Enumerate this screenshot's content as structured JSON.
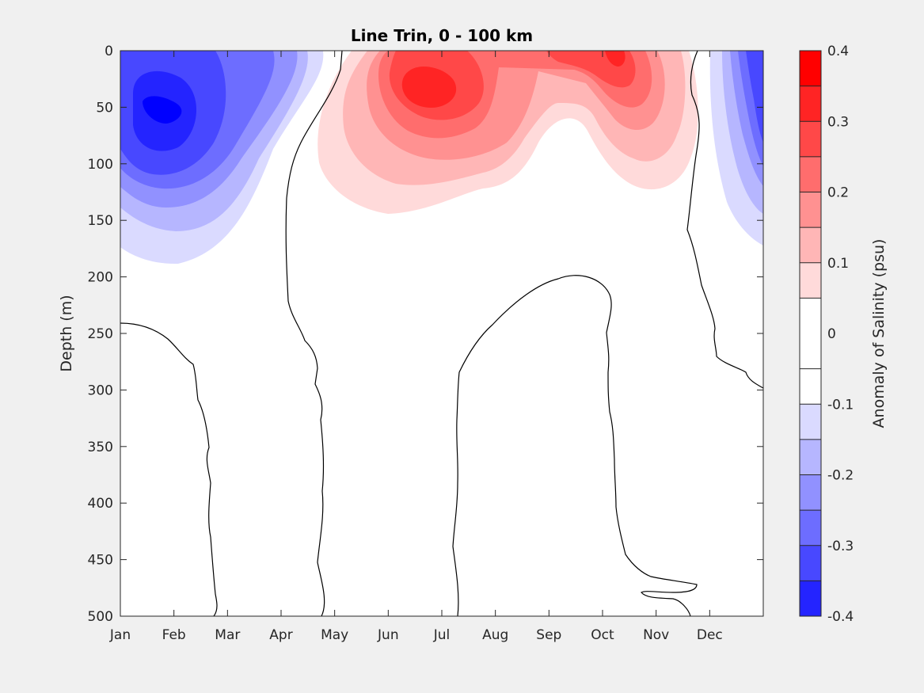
{
  "chart_data": {
    "type": "heatmap",
    "title": "Line Trin, 0 - 100 km",
    "xlabel": "",
    "ylabel": "Depth (m)",
    "x_ticks": [
      "Jan",
      "Feb",
      "Mar",
      "Apr",
      "May",
      "Jun",
      "Jul",
      "Aug",
      "Sep",
      "Oct",
      "Nov",
      "Dec"
    ],
    "x_range_months": [
      0,
      12
    ],
    "y_ticks": [
      0,
      50,
      100,
      150,
      200,
      250,
      300,
      350,
      400,
      450,
      500
    ],
    "ylim": [
      0,
      500
    ],
    "y_reversed": true,
    "colorbar": {
      "label": "Anomaly of Salinity (psu)",
      "range": [
        -0.4,
        0.4
      ],
      "ticks": [
        "0.4",
        "0.3",
        "0.2",
        "0.1",
        "0",
        "-0.1",
        "-0.2",
        "-0.3",
        "-0.4"
      ],
      "levels": [
        -0.4,
        -0.35,
        -0.3,
        -0.25,
        -0.2,
        -0.15,
        -0.1,
        -0.05,
        0.05,
        0.1,
        0.15,
        0.2,
        0.25,
        0.3,
        0.35,
        0.4
      ],
      "colors": [
        "#0000ff",
        "#2424ff",
        "#4848ff",
        "#6d6dff",
        "#9191ff",
        "#b6b6ff",
        "#dadaff",
        "#ffffff",
        "#ffffff",
        "#ffdada",
        "#ffb6b6",
        "#ff9191",
        "#ff6d6d",
        "#ff4848",
        "#ff2424",
        "#ff0000"
      ]
    },
    "features": [
      {
        "sign": "negative",
        "peak": -0.35,
        "center_month": 1.0,
        "center_depth_m": 50,
        "max_depth_m": 185
      },
      {
        "sign": "positive",
        "peak": 0.3,
        "center_month": 5.7,
        "center_depth_m": 35,
        "max_depth_m": 175
      },
      {
        "sign": "positive",
        "peak": 0.2,
        "center_month": 8.7,
        "center_depth_m": 10,
        "max_depth_m": 95
      },
      {
        "sign": "negative",
        "peak": -0.2,
        "center_month": 12.0,
        "center_depth_m": 60,
        "max_depth_m": 165
      }
    ]
  }
}
